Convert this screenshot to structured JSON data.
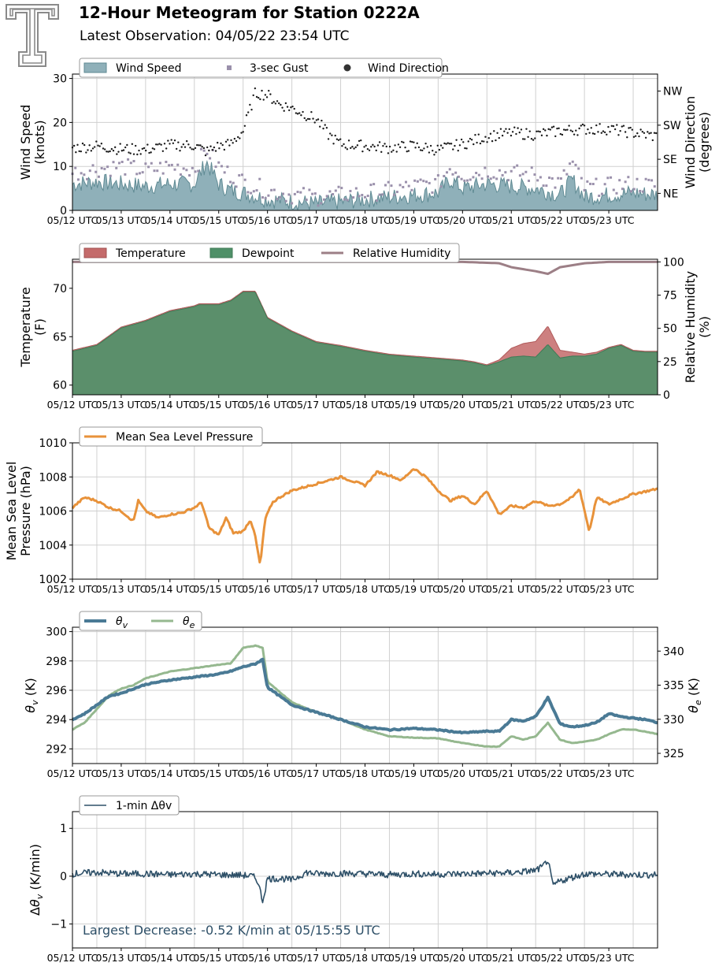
{
  "header": {
    "title": "12-Hour Meteogram for Station 0222A",
    "subtitle": "Latest Observation: 04/05/22 23:54 UTC",
    "logo_icon": "texas-tech-double-t-logo"
  },
  "colors": {
    "wind_speed": "#8fb0b9",
    "wind_speed_line": "#5f8a93",
    "gust": "#9a90ab",
    "direction": "#1a1a1a",
    "temperature": "#c46a6a",
    "dewpoint": "#4f9068",
    "rh": "#9c7f86",
    "mslp": "#e8923a",
    "theta_v": "#4a7a95",
    "theta_e": "#95b88f",
    "dtheta": "#2e5068",
    "annotation": "#2e5068",
    "grid": "#d0d0d0"
  },
  "chart_data": [
    {
      "id": "wind",
      "type": "area",
      "legend": [
        "Wind Speed",
        "3-sec Gust",
        "Wind Direction"
      ],
      "ylabel": [
        "Wind Speed",
        "(knots)"
      ],
      "ylim": [
        0,
        31
      ],
      "yticks": [
        0,
        10,
        20,
        30
      ],
      "y2label": [
        "Wind Direction",
        "(degrees)"
      ],
      "y2lim": [
        0,
        360
      ],
      "y2ticks": [
        {
          "label": "NE",
          "value": 45
        },
        {
          "label": "SE",
          "value": 135
        },
        {
          "label": "SW",
          "value": 225
        },
        {
          "label": "NW",
          "value": 315
        }
      ],
      "xticks": [
        "05/12 UTC",
        "05/13 UTC",
        "05/14 UTC",
        "05/15 UTC",
        "05/16 UTC",
        "05/17 UTC",
        "05/18 UTC",
        "05/19 UTC",
        "05/20 UTC",
        "05/21 UTC",
        "05/22 UTC",
        "05/23 UTC"
      ],
      "xrange": [
        0,
        12
      ],
      "grid": true,
      "legend_placement": "top-left",
      "series": [
        {
          "name": "Wind Speed",
          "x": [
            0,
            0.5,
            1,
            1.5,
            2,
            2.5,
            2.6,
            2.75,
            3,
            3.25,
            3.5,
            4,
            4.5,
            5,
            5.5,
            6,
            6.5,
            7,
            7.5,
            7.75,
            8,
            8.5,
            9,
            9.5,
            10,
            10.25,
            10.5,
            11,
            11.5,
            12
          ],
          "values": [
            6,
            6.5,
            6,
            5.5,
            6,
            6,
            8,
            11,
            6,
            4.5,
            4,
            2.5,
            2,
            1.5,
            2,
            2.5,
            3,
            3.5,
            4,
            7,
            5,
            6,
            5.5,
            5,
            3.5,
            7,
            3,
            3.5,
            4,
            3.5
          ]
        },
        {
          "name": "3-sec Gust",
          "x": [
            0,
            0.5,
            1,
            1.5,
            2,
            2.5,
            2.75,
            3,
            3.25,
            3.5,
            4,
            4.5,
            5,
            5.5,
            6,
            6.5,
            7,
            7.5,
            7.75,
            8,
            8.5,
            9,
            9.5,
            10,
            10.25,
            10.5,
            11,
            11.5,
            12
          ],
          "values": [
            8.5,
            9.5,
            10,
            9,
            10,
            9.5,
            14,
            10,
            8,
            6.5,
            4.5,
            3.5,
            3,
            3.5,
            4,
            4.5,
            5.5,
            6,
            10,
            8,
            9,
            8.5,
            8,
            6,
            11,
            5,
            5.5,
            6,
            5.5
          ]
        },
        {
          "name": "Wind Direction",
          "x": [
            0,
            0.5,
            1,
            1.5,
            2,
            2.5,
            2.75,
            3,
            3.25,
            3.5,
            3.75,
            4,
            4.25,
            4.5,
            4.75,
            5,
            5.25,
            5.5,
            6,
            6.5,
            7,
            7.5,
            8,
            8.5,
            9,
            9.5,
            10,
            10.5,
            11,
            11.5,
            12
          ],
          "values": [
            165,
            170,
            162,
            160,
            172,
            172,
            155,
            170,
            175,
            210,
            310,
            305,
            280,
            270,
            255,
            240,
            200,
            175,
            170,
            165,
            170,
            160,
            175,
            195,
            205,
            200,
            210,
            215,
            215,
            205,
            195
          ]
        }
      ]
    },
    {
      "id": "temperature",
      "type": "area",
      "legend": [
        "Temperature",
        "Dewpoint",
        "Relative Humidity"
      ],
      "ylabel": [
        "Temperature",
        "(F)"
      ],
      "ylim": [
        59,
        73
      ],
      "yticks": [
        60,
        65,
        70
      ],
      "y2label": [
        "Relative Humidity",
        "(%)"
      ],
      "y2lim": [
        0,
        102
      ],
      "y2ticks": [
        0,
        25,
        50,
        75,
        100
      ],
      "xticks": [
        "05/12 UTC",
        "05/13 UTC",
        "05/14 UTC",
        "05/15 UTC",
        "05/16 UTC",
        "05/17 UTC",
        "05/18 UTC",
        "05/19 UTC",
        "05/20 UTC",
        "05/21 UTC",
        "05/22 UTC",
        "05/23 UTC"
      ],
      "xrange": [
        0,
        12
      ],
      "grid": false,
      "legend_placement": "top-left",
      "series": [
        {
          "name": "Temperature",
          "x": [
            0,
            0.5,
            1,
            1.5,
            2,
            2.5,
            2.6,
            3,
            3.25,
            3.5,
            3.75,
            4,
            4.25,
            4.5,
            5,
            5.5,
            6,
            6.5,
            7,
            7.5,
            8,
            8.25,
            8.5,
            8.75,
            9,
            9.25,
            9.5,
            9.75,
            10,
            10.25,
            10.5,
            10.75,
            11,
            11.25,
            11.5,
            11.75,
            12
          ],
          "values": [
            63.6,
            64.2,
            66,
            66.7,
            67.7,
            68.2,
            68.4,
            68.4,
            68.8,
            69.7,
            69.7,
            67,
            66.3,
            65.6,
            64.5,
            64.1,
            63.6,
            63.2,
            63,
            62.8,
            62.6,
            62.4,
            62.1,
            62.6,
            63.8,
            64.3,
            64.5,
            66.1,
            63.6,
            63.4,
            63.2,
            63.4,
            63.9,
            64.2,
            63.6,
            63.5,
            63.5
          ]
        },
        {
          "name": "Dewpoint",
          "x": [
            0,
            0.5,
            1,
            1.5,
            2,
            2.5,
            2.6,
            3,
            3.25,
            3.5,
            3.75,
            4,
            4.25,
            4.5,
            5,
            5.5,
            6,
            6.5,
            7,
            7.5,
            8,
            8.25,
            8.5,
            8.75,
            9,
            9.25,
            9.5,
            9.75,
            10,
            10.25,
            10.5,
            10.75,
            11,
            11.25,
            11.5,
            11.75,
            12
          ],
          "values": [
            63.5,
            64.1,
            65.9,
            66.6,
            67.6,
            68.1,
            68.3,
            68.3,
            68.7,
            69.6,
            69.6,
            66.9,
            66.2,
            65.5,
            64.4,
            64,
            63.5,
            63.1,
            62.9,
            62.7,
            62.5,
            62.3,
            62,
            62.4,
            62.9,
            63,
            62.9,
            64.2,
            62.8,
            63,
            63,
            63.2,
            63.8,
            64.1,
            63.5,
            63.4,
            63.4
          ]
        },
        {
          "name": "Relative Humidity",
          "x": [
            0,
            1,
            2,
            3,
            4,
            5,
            6,
            7,
            8,
            8.75,
            9,
            9.5,
            9.75,
            10,
            10.5,
            11,
            12
          ],
          "values": [
            100,
            100,
            100,
            100,
            100,
            100,
            100,
            100,
            100,
            99,
            96,
            93,
            91,
            96,
            99,
            100,
            100
          ]
        }
      ]
    },
    {
      "id": "pressure",
      "type": "line",
      "legend": [
        "Mean Sea Level Pressure"
      ],
      "ylabel": [
        "Mean Sea Level",
        "Pressure (hPa)"
      ],
      "ylim": [
        1002,
        1010
      ],
      "yticks": [
        1002,
        1004,
        1006,
        1008,
        1010
      ],
      "xticks": [
        "05/12 UTC",
        "05/13 UTC",
        "05/14 UTC",
        "05/15 UTC",
        "05/16 UTC",
        "05/17 UTC",
        "05/18 UTC",
        "05/19 UTC",
        "05/20 UTC",
        "05/21 UTC",
        "05/22 UTC",
        "05/23 UTC"
      ],
      "xrange": [
        0,
        12
      ],
      "grid": true,
      "legend_placement": "top-left",
      "series": [
        {
          "name": "Mean Sea Level Pressure",
          "x": [
            0,
            0.25,
            0.5,
            0.75,
            1,
            1.25,
            1.35,
            1.5,
            1.75,
            2,
            2.25,
            2.5,
            2.65,
            2.8,
            3,
            3.15,
            3.3,
            3.5,
            3.65,
            3.75,
            3.85,
            3.95,
            4.1,
            4.25,
            4.5,
            5,
            5.5,
            6,
            6.25,
            6.5,
            6.75,
            7,
            7.25,
            7.5,
            7.75,
            8,
            8.25,
            8.5,
            8.75,
            9,
            9.25,
            9.5,
            9.75,
            10,
            10.25,
            10.4,
            10.6,
            10.75,
            11,
            11.5,
            12
          ],
          "values": [
            1006.2,
            1006.8,
            1006.6,
            1006.2,
            1006,
            1005.4,
            1006.6,
            1006,
            1005.6,
            1005.8,
            1005.9,
            1006.2,
            1006.5,
            1005.0,
            1004.6,
            1005.6,
            1004.7,
            1004.8,
            1005.5,
            1004.5,
            1002.8,
            1005.5,
            1006.5,
            1006.8,
            1007.2,
            1007.6,
            1008,
            1007.5,
            1008.3,
            1008.1,
            1007.8,
            1008.5,
            1008,
            1007.2,
            1006.6,
            1006.9,
            1006.4,
            1007.2,
            1005.8,
            1006.3,
            1006.2,
            1006.6,
            1006.3,
            1006.4,
            1006.8,
            1007.3,
            1004.8,
            1006.8,
            1006.4,
            1007.0,
            1007.3
          ]
        }
      ]
    },
    {
      "id": "theta",
      "type": "line",
      "legend": [
        "θv",
        "θe"
      ],
      "ylabel": [
        "θv (K)"
      ],
      "ylim": [
        291,
        300.3
      ],
      "yticks": [
        292,
        294,
        296,
        298,
        300
      ],
      "y2label": [
        "θe (K)"
      ],
      "y2lim": [
        323.5,
        343.5
      ],
      "y2ticks": [
        325,
        330,
        335,
        340
      ],
      "xticks": [
        "05/12 UTC",
        "05/13 UTC",
        "05/14 UTC",
        "05/15 UTC",
        "05/16 UTC",
        "05/17 UTC",
        "05/18 UTC",
        "05/19 UTC",
        "05/20 UTC",
        "05/21 UTC",
        "05/22 UTC",
        "05/23 UTC"
      ],
      "xrange": [
        0,
        12
      ],
      "grid": true,
      "legend_placement": "top-left",
      "series": [
        {
          "name": "θv",
          "x": [
            0,
            0.25,
            0.5,
            0.75,
            1,
            1.25,
            1.5,
            2,
            2.5,
            3,
            3.25,
            3.5,
            3.75,
            3.9,
            4.0,
            4.25,
            4.5,
            5,
            5.5,
            6,
            6.5,
            7,
            7.5,
            8,
            8.5,
            8.75,
            9,
            9.25,
            9.5,
            9.75,
            10,
            10.25,
            10.5,
            10.75,
            11,
            11.25,
            11.5,
            11.75,
            12
          ],
          "values": [
            294,
            294.4,
            295,
            295.6,
            295.8,
            296.1,
            296.4,
            296.7,
            296.9,
            297.1,
            297.3,
            297.6,
            297.8,
            298.1,
            296.2,
            295.6,
            295.0,
            294.5,
            294.0,
            293.5,
            293.3,
            293.4,
            293.3,
            293.1,
            293.2,
            293.2,
            294,
            293.9,
            294.2,
            295.5,
            293.7,
            293.5,
            293.6,
            293.8,
            294.4,
            294.2,
            294.1,
            294,
            293.8
          ]
        },
        {
          "name": "θe",
          "x": [
            0,
            0.25,
            0.5,
            0.75,
            1,
            1.25,
            1.5,
            2,
            2.5,
            3,
            3.25,
            3.5,
            3.75,
            3.9,
            4.0,
            4.25,
            4.5,
            5,
            5.5,
            6,
            6.5,
            7,
            7.5,
            8,
            8.5,
            8.75,
            9,
            9.25,
            9.5,
            9.75,
            10,
            10.25,
            10.5,
            10.75,
            11,
            11.25,
            11.5,
            11.75,
            12
          ],
          "values": [
            328.5,
            329.5,
            331.5,
            333.5,
            334.5,
            335,
            336,
            337,
            337.5,
            338,
            338.2,
            340.5,
            340.8,
            340.5,
            335.5,
            334,
            332.5,
            331,
            330,
            328.5,
            327.5,
            327.3,
            327.2,
            326.5,
            326,
            326,
            327.5,
            327,
            327.5,
            329.5,
            327,
            326.5,
            326.7,
            327,
            327.8,
            328.5,
            328.5,
            328.2,
            327.8
          ]
        }
      ]
    },
    {
      "id": "dtheta",
      "type": "line",
      "legend": [
        "1-min Δθv"
      ],
      "ylabel": [
        "Δθv (K/min)"
      ],
      "ylim": [
        -1.5,
        1.35
      ],
      "yticks": [
        -1,
        0,
        1
      ],
      "xticks": [
        "05/12 UTC",
        "05/13 UTC",
        "05/14 UTC",
        "05/15 UTC",
        "05/16 UTC",
        "05/17 UTC",
        "05/18 UTC",
        "05/19 UTC",
        "05/20 UTC",
        "05/21 UTC",
        "05/22 UTC",
        "05/23 UTC"
      ],
      "xrange": [
        0,
        12
      ],
      "grid": true,
      "legend_placement": "top-left",
      "annotation": "Largest Decrease: -0.52 K/min at 05/15:55 UTC",
      "series": [
        {
          "name": "1-min Δθv",
          "x": [
            0,
            0.5,
            1,
            1.5,
            2,
            2.5,
            3,
            3.5,
            3.7,
            3.8,
            3.9,
            4.0,
            4.3,
            4.5,
            4.8,
            5,
            5.5,
            6,
            6.5,
            7,
            7.5,
            8,
            8.5,
            9,
            9.3,
            9.5,
            9.65,
            9.75,
            9.85,
            10,
            10.5,
            11,
            11.5,
            12
          ],
          "values": [
            0.05,
            0.08,
            0.05,
            0.05,
            0.03,
            0.05,
            0.03,
            0.02,
            0,
            -0.1,
            -0.52,
            -0.05,
            -0.05,
            -0.08,
            0.08,
            0.05,
            0.06,
            0.05,
            0.03,
            0.05,
            0.04,
            0.05,
            0.06,
            0.07,
            0.1,
            0.12,
            0.2,
            0.35,
            -0.2,
            -0.1,
            0.05,
            0.04,
            0.03,
            0.03
          ]
        }
      ]
    }
  ]
}
